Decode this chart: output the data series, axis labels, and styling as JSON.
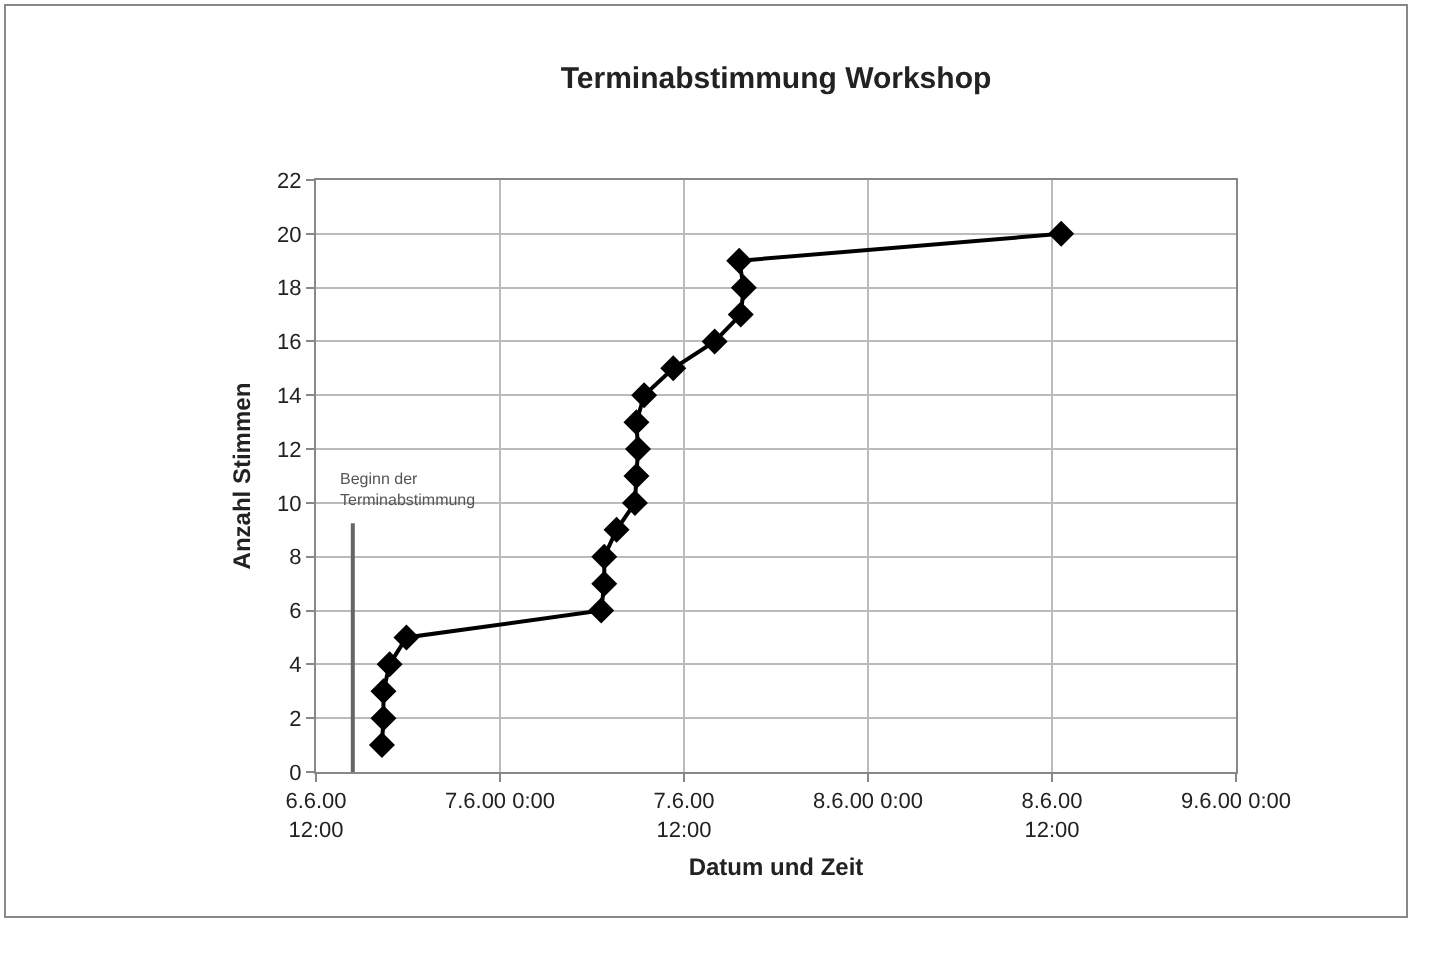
{
  "chart_data": {
    "type": "line",
    "title": "Terminabstimmung Workshop",
    "xlabel": "Datum und Zeit",
    "ylabel": "Anzahl Stimmen",
    "x": [
      "2000-06-06T16:18",
      "2000-06-06T16:24",
      "2000-06-06T16:24",
      "2000-06-06T16:48",
      "2000-06-06T17:54",
      "2000-06-07T06:36",
      "2000-06-07T06:48",
      "2000-06-07T06:48",
      "2000-06-07T07:36",
      "2000-06-07T08:48",
      "2000-06-07T08:54",
      "2000-06-07T09:00",
      "2000-06-07T08:54",
      "2000-06-07T09:24",
      "2000-06-07T11:18",
      "2000-06-07T14:00",
      "2000-06-07T15:42",
      "2000-06-07T15:54",
      "2000-06-07T15:36",
      "2000-06-08T12:36"
    ],
    "series": [
      {
        "color": "#000000",
        "values": [
          1,
          2,
          3,
          4,
          5,
          6,
          7,
          8,
          9,
          10,
          11,
          12,
          13,
          14,
          15,
          16,
          17,
          18,
          19,
          20
        ]
      }
    ],
    "xlim": [
      "2000-06-06T12:00",
      "2000-06-09T00:00"
    ],
    "xticks": [
      {
        "value": "2000-06-06T12:00",
        "label": "6.6.00\n12:00"
      },
      {
        "value": "2000-06-07T00:00",
        "label": "7.6.00 0:00"
      },
      {
        "value": "2000-06-07T12:00",
        "label": "7.6.00\n12:00"
      },
      {
        "value": "2000-06-08T00:00",
        "label": "8.6.00 0:00"
      },
      {
        "value": "2000-06-08T12:00",
        "label": "8.6.00\n12:00"
      },
      {
        "value": "2000-06-09T00:00",
        "label": "9.6.00 0:00"
      }
    ],
    "ylim": [
      0,
      22
    ],
    "yticks": [
      0,
      2,
      4,
      6,
      8,
      10,
      12,
      14,
      16,
      18,
      20,
      22
    ],
    "ref_lines": [
      {
        "axis": "x",
        "value": "2000-06-06T14:24",
        "label": "Beginn der\nTerminabstimmung",
        "color": "#666666"
      }
    ],
    "grid": true,
    "marker": "diamond",
    "line_style": "solid"
  }
}
